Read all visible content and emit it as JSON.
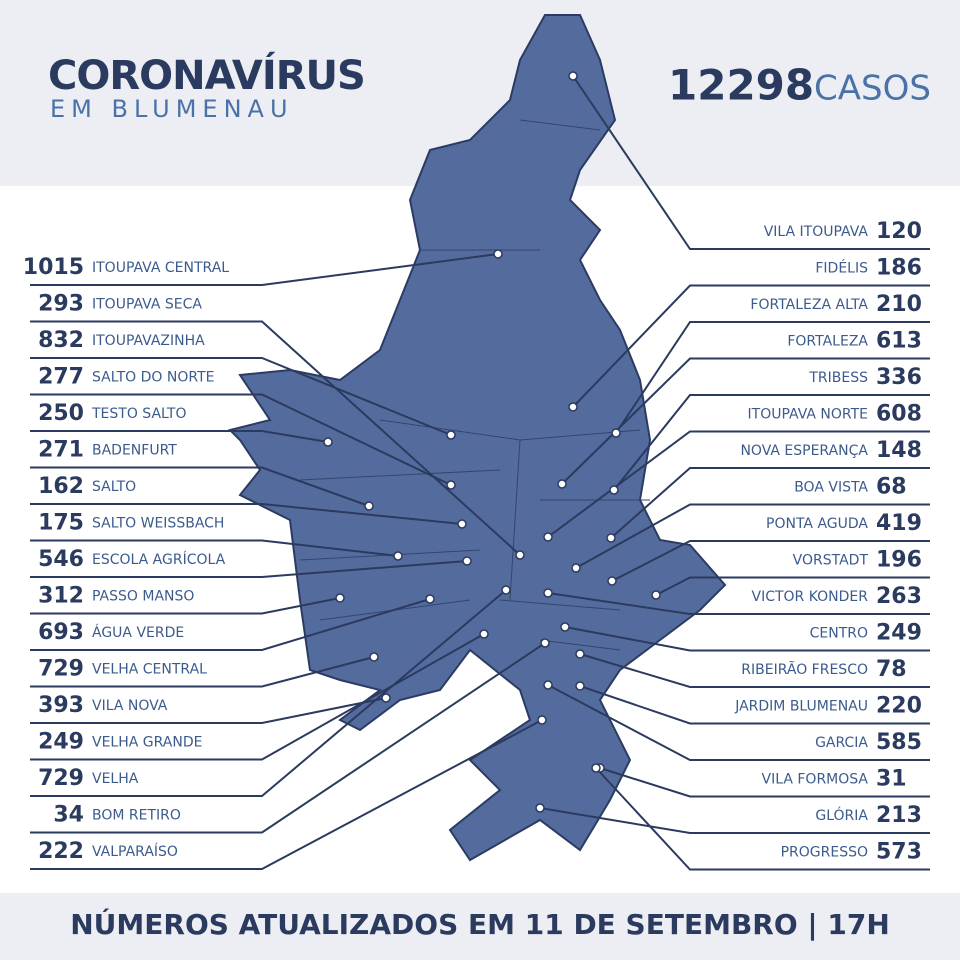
{
  "header": {
    "title": "CORONAVÍRUS",
    "subtitle": "EM BLUMENAU",
    "total": {
      "value": 12298,
      "label": "CASOS"
    }
  },
  "left": [
    {
      "cases": 1015,
      "name": "ITOUPAVA CENTRAL"
    },
    {
      "cases": 293,
      "name": "ITOUPAVA SECA"
    },
    {
      "cases": 832,
      "name": "ITOUPAVAZINHA"
    },
    {
      "cases": 277,
      "name": "SALTO DO NORTE"
    },
    {
      "cases": 250,
      "name": "TESTO SALTO"
    },
    {
      "cases": 271,
      "name": "BADENFURT"
    },
    {
      "cases": 162,
      "name": "SALTO"
    },
    {
      "cases": 175,
      "name": "SALTO WEISSBACH"
    },
    {
      "cases": 546,
      "name": "ESCOLA AGRÍCOLA"
    },
    {
      "cases": 312,
      "name": "PASSO MANSO"
    },
    {
      "cases": 693,
      "name": "ÁGUA VERDE"
    },
    {
      "cases": 729,
      "name": "VELHA CENTRAL"
    },
    {
      "cases": 393,
      "name": "VILA NOVA"
    },
    {
      "cases": 249,
      "name": "VELHA GRANDE"
    },
    {
      "cases": 729,
      "name": "VELHA"
    },
    {
      "cases": 34,
      "name": "BOM RETIRO"
    },
    {
      "cases": 222,
      "name": "VALPARAÍSO"
    }
  ],
  "right": [
    {
      "name": "VILA ITOUPAVA",
      "cases": 120
    },
    {
      "name": "FIDÉLIS",
      "cases": 186
    },
    {
      "name": "FORTALEZA ALTA",
      "cases": 210
    },
    {
      "name": "FORTALEZA",
      "cases": 613
    },
    {
      "name": "TRIBESS",
      "cases": 336
    },
    {
      "name": "ITOUPAVA NORTE",
      "cases": 608
    },
    {
      "name": "NOVA ESPERANÇA",
      "cases": 148
    },
    {
      "name": "BOA VISTA",
      "cases": 68
    },
    {
      "name": "PONTA AGUDA",
      "cases": 419
    },
    {
      "name": "VORSTADT",
      "cases": 196
    },
    {
      "name": "VICTOR KONDER",
      "cases": 263
    },
    {
      "name": "CENTRO",
      "cases": 249
    },
    {
      "name": "RIBEIRÃO FRESCO",
      "cases": 78
    },
    {
      "name": "JARDIM BLUMENAU",
      "cases": 220
    },
    {
      "name": "GARCIA",
      "cases": 585
    },
    {
      "name": "VILA FORMOSA",
      "cases": 31
    },
    {
      "name": "GLÓRIA",
      "cases": 213
    },
    {
      "name": "PROGRESSO",
      "cases": 573
    }
  ],
  "footer": "NÚMEROS ATUALIZADOS EM 11 DE SETEMBRO | 17H"
}
